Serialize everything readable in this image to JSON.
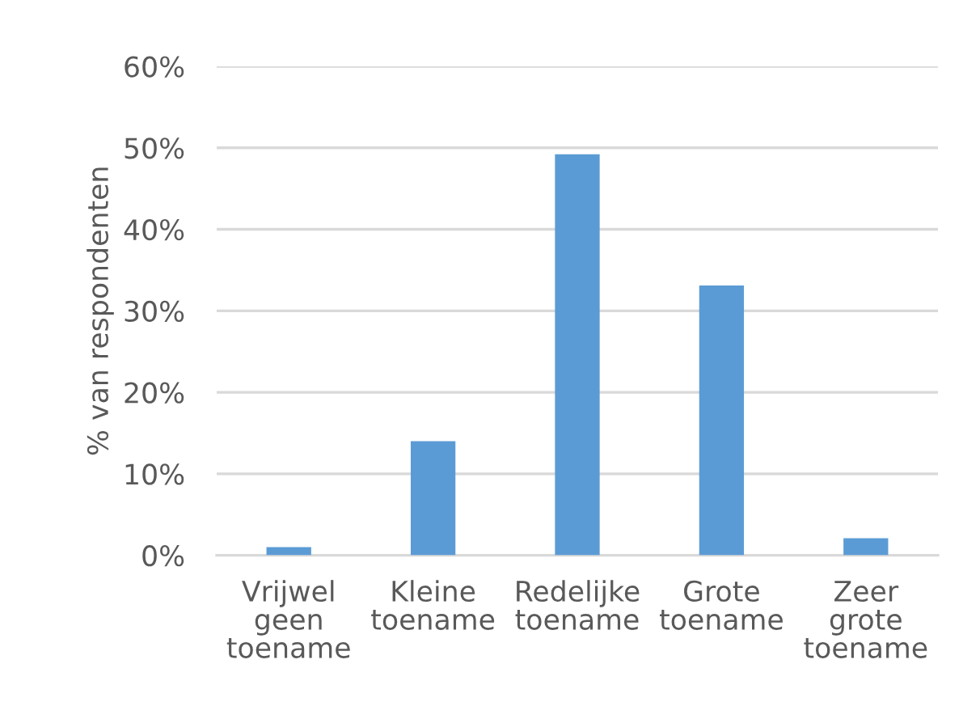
{
  "chart_data": {
    "type": "bar",
    "ylabel": "% van respondenten",
    "categories": [
      "Vrijwel\ngeen\ntoename",
      "Kleine\ntoename",
      "Redelijke\ntoename",
      "Grote\ntoename",
      "Zeer\ngrote\ntoename"
    ],
    "values": [
      1,
      14,
      49.2,
      33.1,
      2.1
    ],
    "color": "#5b9bd5",
    "ylim": [
      0,
      60
    ],
    "yticks": [
      {
        "value": 0,
        "label": "0%"
      },
      {
        "value": 10,
        "label": "10%"
      },
      {
        "value": 20,
        "label": "20%"
      },
      {
        "value": 30,
        "label": "30%"
      },
      {
        "value": 40,
        "label": "40%"
      },
      {
        "value": 50,
        "label": "50%"
      },
      {
        "value": 60,
        "label": "60%"
      }
    ],
    "grid": "y",
    "legend": false
  }
}
